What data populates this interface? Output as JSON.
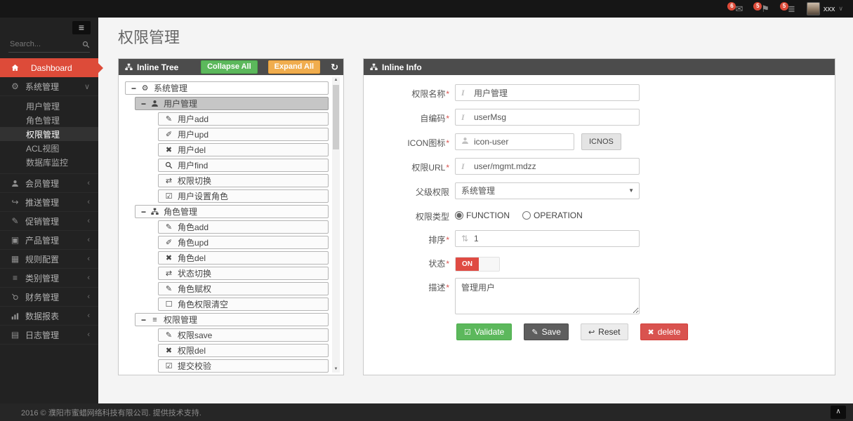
{
  "ui": {
    "required_mark": "*"
  },
  "topbar": {
    "badges": [
      {
        "icon": "message-icon",
        "count": "6"
      },
      {
        "icon": "flag-icon",
        "count": "5"
      },
      {
        "icon": "tasks-icon",
        "count": "5"
      }
    ],
    "user": {
      "name": "xxx"
    }
  },
  "sidebar": {
    "search_placeholder": "Search...",
    "dashboard": {
      "label": "Dashboard"
    },
    "groups": [
      {
        "key": "system-mgmt",
        "label": "系统管理",
        "icon": "cogs-icon",
        "expanded": true,
        "children": [
          {
            "key": "user-mgmt",
            "label": "用户管理"
          },
          {
            "key": "role-mgmt",
            "label": "角色管理"
          },
          {
            "key": "perm-mgmt",
            "label": "权限管理",
            "selected": true
          },
          {
            "key": "acl-view",
            "label": "ACL视图"
          },
          {
            "key": "db-monitor",
            "label": "数据库监控"
          }
        ]
      },
      {
        "key": "member-mgmt",
        "label": "会员管理",
        "icon": "user-icon"
      },
      {
        "key": "push-mgmt",
        "label": "推送管理",
        "icon": "external-link-icon"
      },
      {
        "key": "promo-mgmt",
        "label": "促销管理",
        "icon": "pencil-icon"
      },
      {
        "key": "product-mgmt",
        "label": "产品管理",
        "icon": "image-icon"
      },
      {
        "key": "rule-config",
        "label": "规则配置",
        "icon": "table-icon"
      },
      {
        "key": "category-mgmt",
        "label": "类别管理",
        "icon": "list-icon"
      },
      {
        "key": "finance-mgmt",
        "label": "财务管理",
        "icon": "key-icon"
      },
      {
        "key": "report-mgmt",
        "label": "数据报表",
        "icon": "bar-chart-icon"
      },
      {
        "key": "log-mgmt",
        "label": "日志管理",
        "icon": "inbox-icon"
      }
    ]
  },
  "page": {
    "title": "权限管理"
  },
  "tree_panel": {
    "title": "Inline Tree",
    "collapse_all": "Collapse All",
    "expand_all": "Expand All",
    "nodes": [
      {
        "level": 0,
        "toggle": "−",
        "icon": "cogs-icon",
        "label": "系统管理"
      },
      {
        "level": 1,
        "toggle": "−",
        "icon": "user-icon",
        "label": "用户管理",
        "selected": true
      },
      {
        "level": 2,
        "icon": "pencil-icon",
        "label": "用户add"
      },
      {
        "level": 2,
        "icon": "edit-icon",
        "label": "用户upd"
      },
      {
        "level": 2,
        "icon": "x-icon",
        "label": "用户del"
      },
      {
        "level": 2,
        "icon": "search-icon",
        "label": "用户find"
      },
      {
        "level": 2,
        "icon": "retweet-icon",
        "label": "权限切换"
      },
      {
        "level": 2,
        "icon": "check-square-icon",
        "label": "用户设置角色"
      },
      {
        "level": 1,
        "toggle": "−",
        "icon": "sitemap-icon",
        "label": "角色管理"
      },
      {
        "level": 2,
        "icon": "pencil-icon",
        "label": "角色add"
      },
      {
        "level": 2,
        "icon": "edit-icon",
        "label": "角色upd"
      },
      {
        "level": 2,
        "icon": "x-icon",
        "label": "角色del"
      },
      {
        "level": 2,
        "icon": "retweet-icon",
        "label": "状态切换"
      },
      {
        "level": 2,
        "icon": "pencil-icon",
        "label": "角色赋权"
      },
      {
        "level": 2,
        "icon": "square-icon",
        "label": "角色权限清空"
      },
      {
        "level": 1,
        "toggle": "−",
        "icon": "list-icon",
        "label": "权限管理"
      },
      {
        "level": 2,
        "icon": "pencil-icon",
        "label": "权限save"
      },
      {
        "level": 2,
        "icon": "x-icon",
        "label": "权限del"
      },
      {
        "level": 2,
        "icon": "check-square-icon",
        "label": "提交校验"
      }
    ]
  },
  "info_panel": {
    "title": "Inline Info",
    "fields": {
      "name": {
        "label": "权限名称",
        "value": "用户管理"
      },
      "code": {
        "label": "自编码",
        "value": "userMsg"
      },
      "icon": {
        "label": "ICON图标",
        "value": "icon-user",
        "button": "ICNOS"
      },
      "url": {
        "label": "权限URL",
        "value": "user/mgmt.mdzz"
      },
      "parent": {
        "label": "父级权限",
        "value": "系统管理"
      },
      "type": {
        "label": "权限类型",
        "options": [
          "FUNCTION",
          "OPERATION"
        ],
        "selected": "FUNCTION"
      },
      "order": {
        "label": "排序",
        "value": "1"
      },
      "status": {
        "label": "状态",
        "value": "ON"
      },
      "desc": {
        "label": "描述",
        "value": "管理用户"
      }
    },
    "buttons": {
      "validate": "Validate",
      "save": "Save",
      "reset": "Reset",
      "delete": "delete"
    }
  },
  "footer": {
    "text": "2016 © 濮阳市蜜蜡网络科技有限公司. 提供技术支持."
  },
  "colors": {
    "accent_red": "#dd4b39",
    "success_green": "#5cb85c",
    "warning_orange": "#f0ad4e",
    "danger_red": "#d9534f",
    "header_gray": "#4c4c4c"
  }
}
